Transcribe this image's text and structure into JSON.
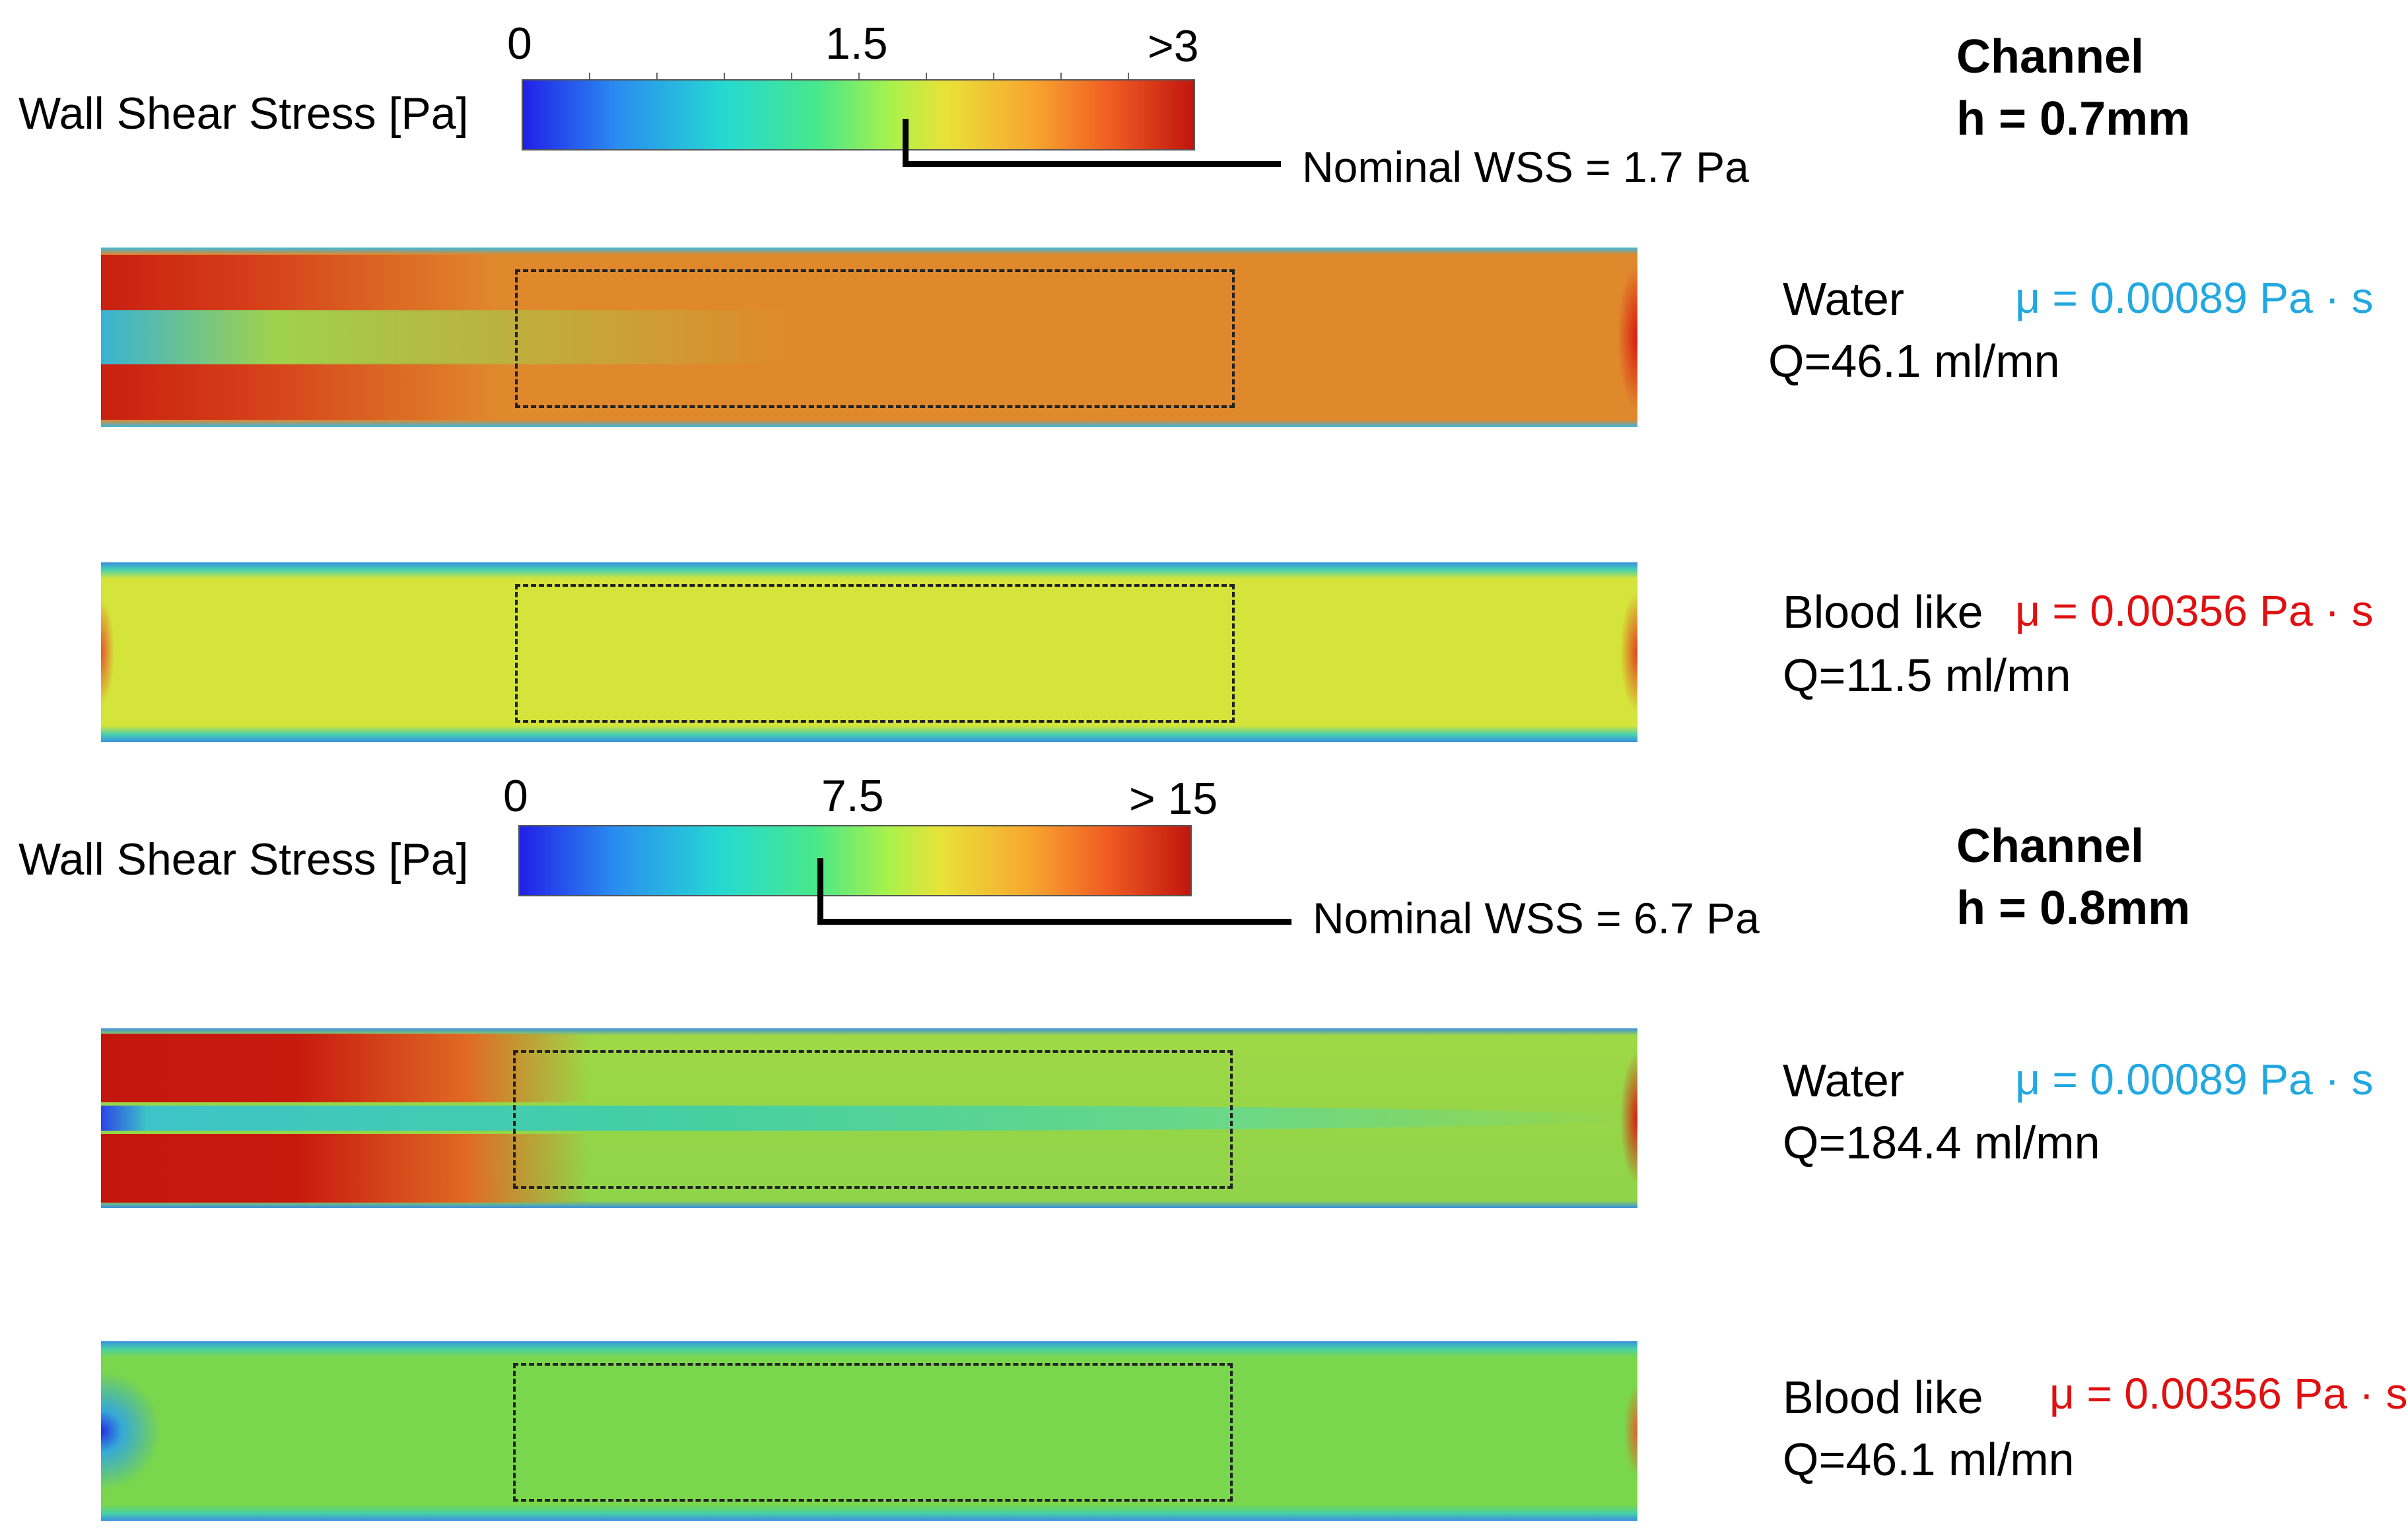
{
  "top_section": {
    "colorbar": {
      "label": "Wall Shear Stress [Pa]",
      "tick_min": "0",
      "tick_mid": "1.5",
      "tick_max": ">3",
      "nominal_label": "Nominal WSS = 1.7 Pa"
    },
    "channel": {
      "title": "Channel",
      "height": "h = 0.7mm"
    },
    "cases": [
      {
        "fluid": "Water",
        "viscosity": "μ = 0.00089 Pa · s",
        "flow": "Q=46.1 ml/mn",
        "mu_color": "#22a8e0"
      },
      {
        "fluid": "Blood like",
        "viscosity": "μ = 0.00356 Pa · s",
        "flow": "Q=11.5 ml/mn",
        "mu_color": "#e01010"
      }
    ]
  },
  "bottom_section": {
    "colorbar": {
      "label": "Wall Shear Stress [Pa]",
      "tick_min": "0",
      "tick_mid": "7.5",
      "tick_max": "> 15",
      "nominal_label": "Nominal WSS = 6.7 Pa"
    },
    "channel": {
      "title": "Channel",
      "height": "h = 0.8mm"
    },
    "cases": [
      {
        "fluid": "Water",
        "viscosity": "μ = 0.00089 Pa · s",
        "flow": "Q=184.4 ml/mn",
        "mu_color": "#22a8e0"
      },
      {
        "fluid": "Blood like",
        "viscosity": "μ = 0.00356 Pa · s",
        "flow": "Q=46.1 ml/mn",
        "mu_color": "#e01010"
      }
    ]
  }
}
